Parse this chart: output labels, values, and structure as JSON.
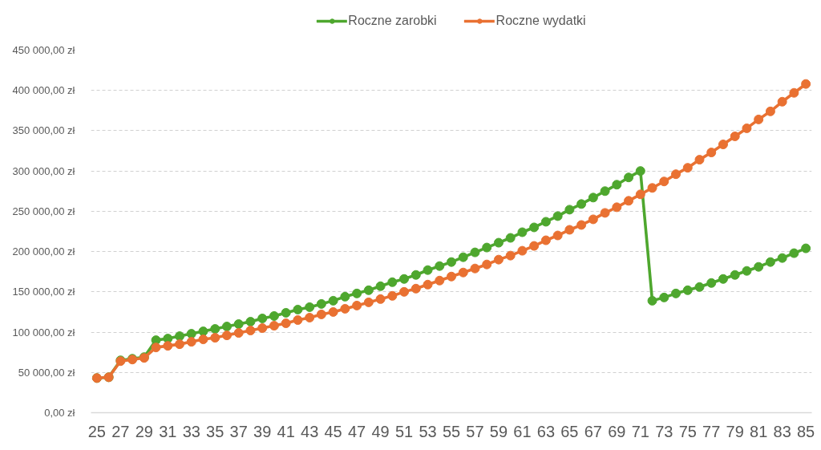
{
  "chart_data": {
    "type": "line",
    "categories": [
      "25",
      null,
      "27",
      null,
      "29",
      null,
      "31",
      null,
      "33",
      null,
      "35",
      null,
      "37",
      null,
      "39",
      null,
      "41",
      null,
      "43",
      null,
      "45",
      null,
      "47",
      null,
      "49",
      null,
      "51",
      null,
      "53",
      null,
      "55",
      null,
      "57",
      null,
      "59",
      null,
      "61",
      null,
      "63",
      null,
      "65",
      null,
      "67",
      null,
      "69",
      null,
      "71",
      null,
      "73",
      null,
      "75",
      null,
      "77",
      null,
      "79",
      null,
      "81",
      null,
      "83",
      null,
      "85"
    ],
    "series": [
      {
        "name": "Roczne zarobki",
        "color": "#4ea72e",
        "values": [
          43000,
          44000,
          65000,
          67000,
          69000,
          90000,
          92000,
          95000,
          98000,
          101000,
          104000,
          107000,
          110000,
          113000,
          117000,
          120000,
          124000,
          128000,
          131000,
          135000,
          139000,
          144000,
          148000,
          152000,
          157000,
          162000,
          166000,
          171000,
          177000,
          182000,
          187000,
          193000,
          199000,
          205000,
          211000,
          217000,
          224000,
          230000,
          237000,
          244000,
          252000,
          259000,
          267000,
          275000,
          283000,
          292000,
          300000,
          139000,
          143000,
          148000,
          152000,
          156000,
          161000,
          166000,
          171000,
          176000,
          181000,
          187000,
          192000,
          198000,
          204000
        ]
      },
      {
        "name": "Roczne wydatki",
        "color": "#e97132",
        "values": [
          43000,
          44000,
          64000,
          66000,
          68000,
          81000,
          83000,
          85000,
          88000,
          91000,
          93000,
          96000,
          99000,
          102000,
          105000,
          108000,
          111000,
          115000,
          118000,
          122000,
          125000,
          129000,
          133000,
          137000,
          141000,
          145000,
          150000,
          154000,
          159000,
          164000,
          169000,
          174000,
          179000,
          184000,
          190000,
          195000,
          201000,
          207000,
          214000,
          220000,
          227000,
          233000,
          240000,
          248000,
          255000,
          263000,
          271000,
          279000,
          287000,
          296000,
          304000,
          314000,
          323000,
          333000,
          343000,
          353000,
          364000,
          374000,
          386000,
          397000,
          408000
        ]
      }
    ],
    "ylim": [
      0,
      450000
    ],
    "yticks": [
      {
        "value": 0,
        "label": "0,00 zł"
      },
      {
        "value": 50000,
        "label": "50 000,00 zł"
      },
      {
        "value": 100000,
        "label": "100 000,00 zł"
      },
      {
        "value": 150000,
        "label": "150 000,00 zł"
      },
      {
        "value": 200000,
        "label": "200 000,00 zł"
      },
      {
        "value": 250000,
        "label": "250 000,00 zł"
      },
      {
        "value": 300000,
        "label": "300 000,00 zł"
      },
      {
        "value": 350000,
        "label": "350 000,00 zł"
      },
      {
        "value": 400000,
        "label": "400 000,00 zł"
      },
      {
        "value": 450000,
        "label": "450 000,00 zł"
      }
    ],
    "grid": "y",
    "legend": "top",
    "marker": "circle",
    "line_style": "solid"
  }
}
